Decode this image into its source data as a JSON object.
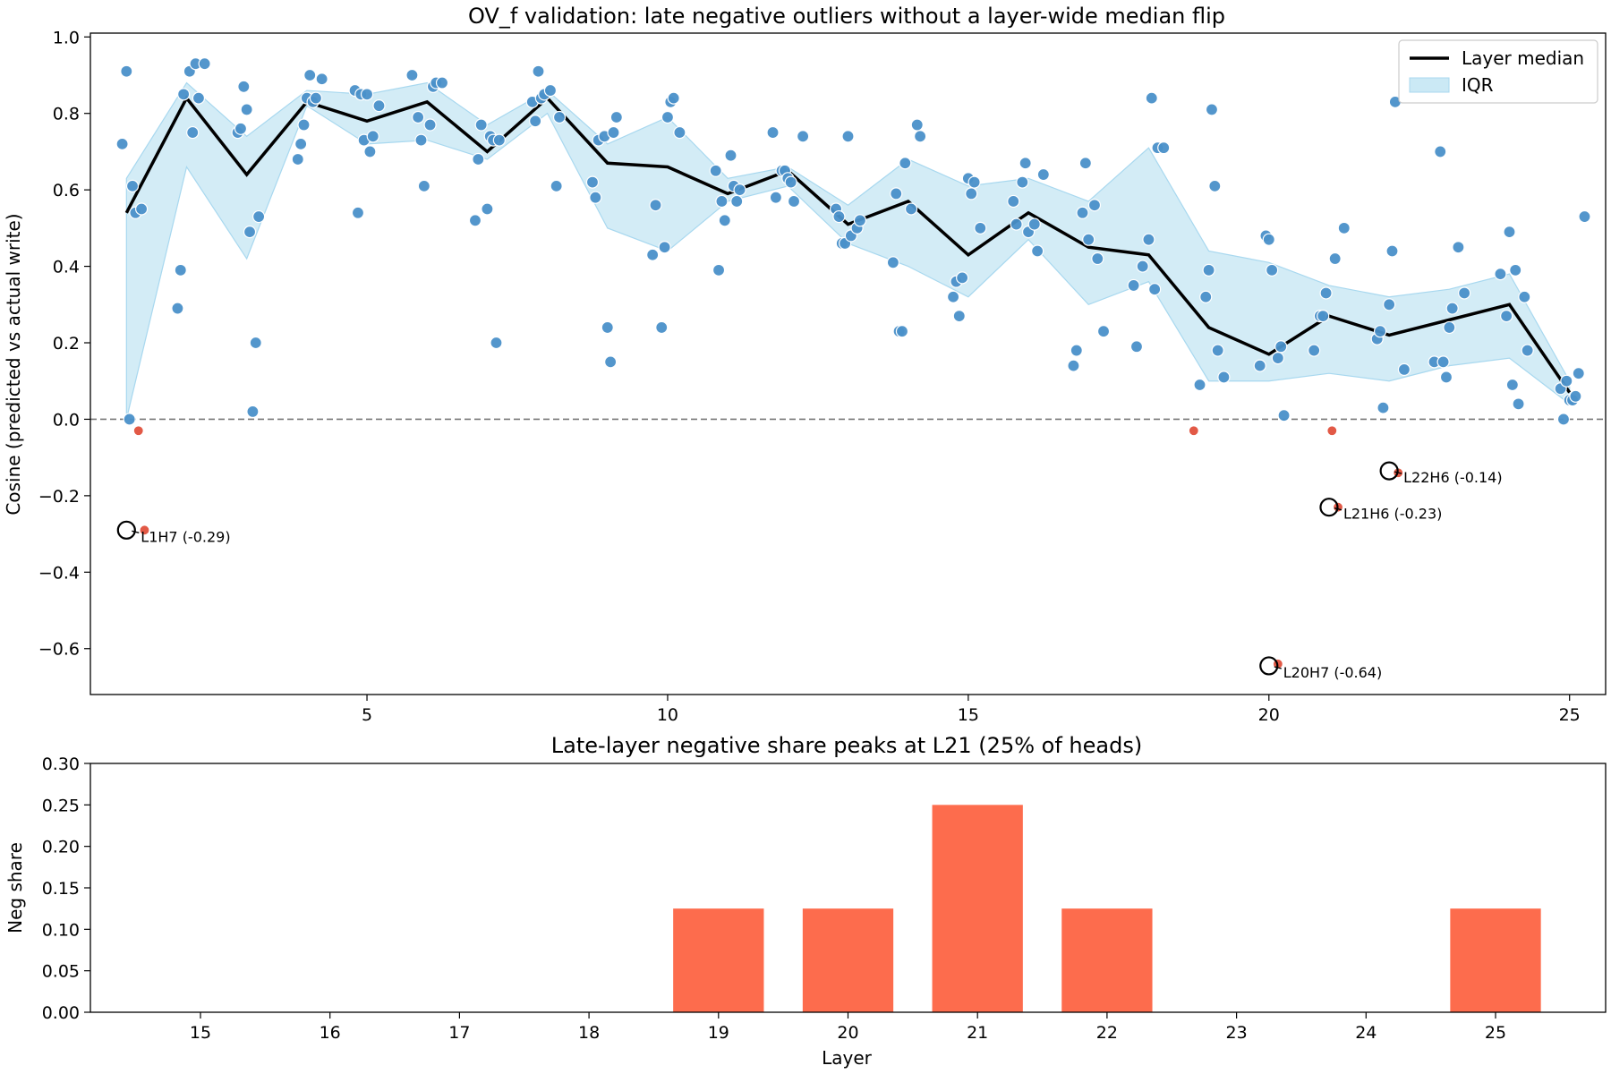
{
  "chart_data": [
    {
      "type": "scatter",
      "title": "OV_f validation: late negative outliers without a layer-wide median flip",
      "xlabel": "",
      "ylabel": "Cosine (predicted vs actual write)",
      "xlim": [
        0.4,
        25.6
      ],
      "ylim": [
        -0.72,
        1.01
      ],
      "xticks": [
        5,
        10,
        15,
        20,
        25
      ],
      "xtick_labels": [
        "5",
        "10",
        "15",
        "20",
        "25"
      ],
      "yticks": [
        -0.6,
        -0.4,
        -0.2,
        0.0,
        0.2,
        0.4,
        0.6,
        0.8,
        1.0
      ],
      "ytick_labels": [
        "−0.6",
        "−0.4",
        "−0.2",
        "0.0",
        "0.2",
        "0.4",
        "0.6",
        "0.8",
        "1.0"
      ],
      "reference_line": 0.0,
      "colors": {
        "positive": "#4a90c9",
        "negative": "#e0503c",
        "median": "#000000",
        "iqr_fill": "#cbe9f5",
        "iqr_edge": "#a8d8ef"
      },
      "legend": {
        "position": "upper right",
        "entries": [
          "Layer median",
          "IQR"
        ]
      },
      "median": {
        "name": "Layer median",
        "x": [
          1,
          2,
          3,
          4,
          5,
          6,
          7,
          8,
          9,
          10,
          11,
          12,
          13,
          14,
          15,
          16,
          17,
          18,
          19,
          20,
          21,
          22,
          23,
          24,
          25
        ],
        "y": [
          0.54,
          0.84,
          0.64,
          0.83,
          0.78,
          0.83,
          0.7,
          0.84,
          0.67,
          0.66,
          0.59,
          0.65,
          0.51,
          0.57,
          0.43,
          0.54,
          0.45,
          0.43,
          0.24,
          0.17,
          0.27,
          0.22,
          0.26,
          0.3,
          0.07
        ]
      },
      "iqr": {
        "name": "IQR",
        "x": [
          1,
          2,
          3,
          4,
          5,
          6,
          7,
          8,
          9,
          10,
          11,
          12,
          13,
          14,
          15,
          16,
          17,
          18,
          19,
          20,
          21,
          22,
          23,
          24,
          25
        ],
        "lower": [
          0.0,
          0.66,
          0.42,
          0.82,
          0.72,
          0.73,
          0.68,
          0.8,
          0.5,
          0.44,
          0.57,
          0.61,
          0.46,
          0.4,
          0.32,
          0.47,
          0.3,
          0.36,
          0.1,
          0.1,
          0.12,
          0.1,
          0.14,
          0.16,
          0.04
        ],
        "upper": [
          0.63,
          0.88,
          0.74,
          0.86,
          0.85,
          0.88,
          0.77,
          0.86,
          0.72,
          0.79,
          0.63,
          0.66,
          0.56,
          0.68,
          0.61,
          0.63,
          0.57,
          0.71,
          0.44,
          0.41,
          0.35,
          0.32,
          0.34,
          0.38,
          0.1
        ]
      },
      "points": [
        [
          0.93,
          0.72
        ],
        [
          1.0,
          0.91
        ],
        [
          1.1,
          0.61
        ],
        [
          1.15,
          0.54
        ],
        [
          1.25,
          0.55
        ],
        [
          1.05,
          0.0
        ],
        [
          1.2,
          -0.03
        ],
        [
          1.3,
          -0.29
        ],
        [
          1.85,
          0.29
        ],
        [
          1.9,
          0.39
        ],
        [
          1.95,
          0.85
        ],
        [
          2.05,
          0.91
        ],
        [
          2.1,
          0.75
        ],
        [
          2.15,
          0.93
        ],
        [
          2.2,
          0.84
        ],
        [
          2.3,
          0.93
        ],
        [
          2.85,
          0.75
        ],
        [
          2.9,
          0.76
        ],
        [
          2.95,
          0.87
        ],
        [
          3.0,
          0.81
        ],
        [
          3.05,
          0.49
        ],
        [
          3.1,
          0.02
        ],
        [
          3.15,
          0.2
        ],
        [
          3.2,
          0.53
        ],
        [
          3.85,
          0.68
        ],
        [
          3.9,
          0.72
        ],
        [
          3.95,
          0.77
        ],
        [
          4.0,
          0.84
        ],
        [
          4.05,
          0.9
        ],
        [
          4.1,
          0.83
        ],
        [
          4.15,
          0.84
        ],
        [
          4.25,
          0.89
        ],
        [
          4.8,
          0.86
        ],
        [
          4.85,
          0.54
        ],
        [
          4.9,
          0.85
        ],
        [
          4.95,
          0.73
        ],
        [
          5.0,
          0.85
        ],
        [
          5.05,
          0.7
        ],
        [
          5.1,
          0.74
        ],
        [
          5.2,
          0.82
        ],
        [
          5.75,
          0.9
        ],
        [
          5.85,
          0.79
        ],
        [
          5.9,
          0.73
        ],
        [
          5.95,
          0.61
        ],
        [
          6.05,
          0.77
        ],
        [
          6.1,
          0.87
        ],
        [
          6.15,
          0.88
        ],
        [
          6.25,
          0.88
        ],
        [
          6.8,
          0.52
        ],
        [
          6.85,
          0.68
        ],
        [
          6.9,
          0.77
        ],
        [
          7.0,
          0.55
        ],
        [
          7.05,
          0.74
        ],
        [
          7.1,
          0.73
        ],
        [
          7.15,
          0.2
        ],
        [
          7.2,
          0.73
        ],
        [
          7.75,
          0.83
        ],
        [
          7.8,
          0.78
        ],
        [
          7.85,
          0.91
        ],
        [
          7.9,
          0.84
        ],
        [
          7.95,
          0.85
        ],
        [
          8.05,
          0.86
        ],
        [
          8.15,
          0.61
        ],
        [
          8.2,
          0.79
        ],
        [
          8.75,
          0.62
        ],
        [
          8.8,
          0.58
        ],
        [
          8.85,
          0.73
        ],
        [
          8.95,
          0.74
        ],
        [
          9.0,
          0.24
        ],
        [
          9.05,
          0.15
        ],
        [
          9.1,
          0.75
        ],
        [
          9.15,
          0.79
        ],
        [
          9.75,
          0.43
        ],
        [
          9.8,
          0.56
        ],
        [
          9.9,
          0.24
        ],
        [
          9.95,
          0.45
        ],
        [
          10.0,
          0.79
        ],
        [
          10.05,
          0.83
        ],
        [
          10.1,
          0.84
        ],
        [
          10.2,
          0.75
        ],
        [
          10.8,
          0.65
        ],
        [
          10.85,
          0.39
        ],
        [
          10.9,
          0.57
        ],
        [
          10.95,
          0.52
        ],
        [
          11.05,
          0.69
        ],
        [
          11.1,
          0.61
        ],
        [
          11.15,
          0.57
        ],
        [
          11.2,
          0.6
        ],
        [
          11.75,
          0.75
        ],
        [
          11.8,
          0.58
        ],
        [
          11.9,
          0.65
        ],
        [
          11.95,
          0.65
        ],
        [
          12.0,
          0.63
        ],
        [
          12.05,
          0.62
        ],
        [
          12.1,
          0.57
        ],
        [
          12.25,
          0.74
        ],
        [
          12.8,
          0.55
        ],
        [
          12.85,
          0.53
        ],
        [
          12.9,
          0.46
        ],
        [
          12.95,
          0.46
        ],
        [
          13.0,
          0.74
        ],
        [
          13.05,
          0.48
        ],
        [
          13.15,
          0.5
        ],
        [
          13.2,
          0.52
        ],
        [
          13.75,
          0.41
        ],
        [
          13.8,
          0.59
        ],
        [
          13.85,
          0.23
        ],
        [
          13.9,
          0.23
        ],
        [
          13.95,
          0.67
        ],
        [
          14.05,
          0.55
        ],
        [
          14.15,
          0.77
        ],
        [
          14.2,
          0.74
        ],
        [
          14.75,
          0.32
        ],
        [
          14.8,
          0.36
        ],
        [
          14.85,
          0.27
        ],
        [
          14.9,
          0.37
        ],
        [
          15.0,
          0.63
        ],
        [
          15.05,
          0.59
        ],
        [
          15.1,
          0.62
        ],
        [
          15.2,
          0.5
        ],
        [
          15.75,
          0.57
        ],
        [
          15.8,
          0.51
        ],
        [
          15.9,
          0.62
        ],
        [
          15.95,
          0.67
        ],
        [
          16.0,
          0.49
        ],
        [
          16.1,
          0.51
        ],
        [
          16.15,
          0.44
        ],
        [
          16.25,
          0.64
        ],
        [
          16.75,
          0.14
        ],
        [
          16.8,
          0.18
        ],
        [
          16.9,
          0.54
        ],
        [
          16.95,
          0.67
        ],
        [
          17.0,
          0.47
        ],
        [
          17.1,
          0.56
        ],
        [
          17.15,
          0.42
        ],
        [
          17.25,
          0.23
        ],
        [
          17.75,
          0.35
        ],
        [
          17.8,
          0.19
        ],
        [
          17.9,
          0.4
        ],
        [
          18.0,
          0.47
        ],
        [
          18.05,
          0.84
        ],
        [
          18.1,
          0.34
        ],
        [
          18.15,
          0.71
        ],
        [
          18.25,
          0.71
        ],
        [
          18.75,
          -0.03
        ],
        [
          18.85,
          0.09
        ],
        [
          18.95,
          0.32
        ],
        [
          19.0,
          0.39
        ],
        [
          19.05,
          0.81
        ],
        [
          19.1,
          0.61
        ],
        [
          19.15,
          0.18
        ],
        [
          19.25,
          0.11
        ],
        [
          19.85,
          0.14
        ],
        [
          19.95,
          0.48
        ],
        [
          20.0,
          0.47
        ],
        [
          20.05,
          0.39
        ],
        [
          20.15,
          0.16
        ],
        [
          20.2,
          0.19
        ],
        [
          20.25,
          0.01
        ],
        [
          20.15,
          -0.64
        ],
        [
          20.75,
          0.18
        ],
        [
          20.85,
          0.27
        ],
        [
          20.9,
          0.27
        ],
        [
          20.95,
          0.33
        ],
        [
          21.05,
          -0.03
        ],
        [
          21.1,
          0.42
        ],
        [
          21.15,
          -0.23
        ],
        [
          21.25,
          0.5
        ],
        [
          21.8,
          0.21
        ],
        [
          21.85,
          0.23
        ],
        [
          21.9,
          0.03
        ],
        [
          22.0,
          0.3
        ],
        [
          22.05,
          0.44
        ],
        [
          22.1,
          0.83
        ],
        [
          22.15,
          -0.14
        ],
        [
          22.25,
          0.13
        ],
        [
          22.75,
          0.15
        ],
        [
          22.85,
          0.7
        ],
        [
          22.9,
          0.15
        ],
        [
          22.95,
          0.11
        ],
        [
          23.0,
          0.24
        ],
        [
          23.05,
          0.29
        ],
        [
          23.15,
          0.45
        ],
        [
          23.25,
          0.33
        ],
        [
          23.85,
          0.38
        ],
        [
          23.95,
          0.27
        ],
        [
          24.0,
          0.49
        ],
        [
          24.05,
          0.09
        ],
        [
          24.1,
          0.39
        ],
        [
          24.15,
          0.04
        ],
        [
          24.25,
          0.32
        ],
        [
          24.3,
          0.18
        ],
        [
          24.85,
          0.08
        ],
        [
          24.9,
          0.0
        ],
        [
          24.95,
          0.1
        ],
        [
          25.0,
          0.05
        ],
        [
          25.05,
          0.05
        ],
        [
          25.1,
          0.06
        ],
        [
          25.15,
          0.12
        ],
        [
          25.25,
          0.53
        ]
      ],
      "outlier_markers": [
        {
          "x": 1.0,
          "y": -0.29,
          "label": "L1H7 (-0.29)"
        },
        {
          "x": 20.0,
          "y": -0.645,
          "label": "L20H7 (-0.64)"
        },
        {
          "x": 21.0,
          "y": -0.23,
          "label": "L21H6 (-0.23)"
        },
        {
          "x": 22.0,
          "y": -0.135,
          "label": "L22H6 (-0.14)"
        }
      ]
    },
    {
      "type": "bar",
      "title": "Late-layer negative share peaks at L21 (25% of heads)",
      "xlabel": "Layer",
      "ylabel": "Neg share",
      "categories": [
        15,
        16,
        17,
        18,
        19,
        20,
        21,
        22,
        23,
        24,
        25
      ],
      "category_labels": [
        "15",
        "16",
        "17",
        "18",
        "19",
        "20",
        "21",
        "22",
        "23",
        "24",
        "25"
      ],
      "values": [
        0,
        0,
        0,
        0,
        0.125,
        0.125,
        0.25,
        0.125,
        0,
        0,
        0.125
      ],
      "ylim": [
        0.0,
        0.3
      ],
      "yticks": [
        0.0,
        0.05,
        0.1,
        0.15,
        0.2,
        0.25,
        0.3
      ],
      "ytick_labels": [
        "0.00",
        "0.05",
        "0.10",
        "0.15",
        "0.20",
        "0.25",
        "0.30"
      ],
      "bar_color": "#fd6c4d"
    }
  ]
}
